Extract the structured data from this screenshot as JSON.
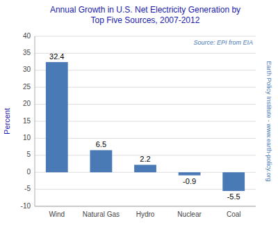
{
  "chart_data": {
    "type": "bar",
    "title": "Annual Growth in U.S. Net Electricity Generation by\nTop Five Sources, 2007-2012",
    "categories": [
      "Wind",
      "Natural Gas",
      "Hydro",
      "Nuclear",
      "Coal"
    ],
    "values": [
      32.4,
      6.5,
      2.2,
      -0.9,
      -5.5
    ],
    "color": "#4a7ab5",
    "ylabel": "Percent",
    "ylim": [
      -10,
      40
    ],
    "yticks": [
      -10,
      -5,
      0,
      5,
      10,
      15,
      20,
      25,
      30,
      35,
      40
    ],
    "grid": true,
    "data_labels": true,
    "annotations": [
      "Source: EPI from EIA",
      "Earth Policy Institute - www.earth-policy.org"
    ]
  }
}
